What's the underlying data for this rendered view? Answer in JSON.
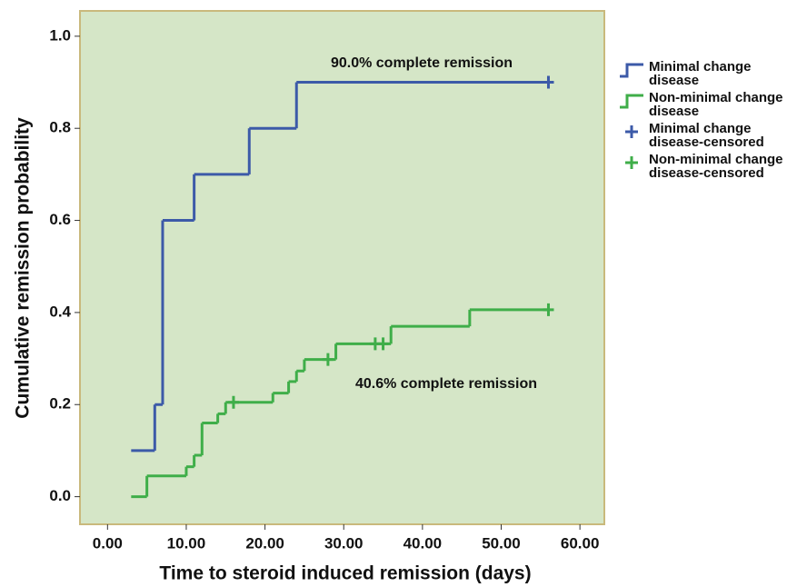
{
  "chart_data": {
    "type": "step",
    "xlabel": "Time to steroid induced remission (days)",
    "ylabel": "Cumulative remission probability",
    "xlim": [
      -3.5,
      63.1
    ],
    "ylim": [
      -0.06,
      1.055
    ],
    "xticks": [
      {
        "value": 0,
        "label": "0.00"
      },
      {
        "value": 10,
        "label": "10.00"
      },
      {
        "value": 20,
        "label": "20.00"
      },
      {
        "value": 30,
        "label": "30.00"
      },
      {
        "value": 40,
        "label": "40.00"
      },
      {
        "value": 50,
        "label": "50.00"
      },
      {
        "value": 60,
        "label": "60.00"
      }
    ],
    "yticks": [
      {
        "value": 0,
        "label": "0.0"
      },
      0.2,
      0.4,
      0.6,
      0.8,
      {
        "value": 1,
        "label": "1.0"
      }
    ],
    "annotations": [
      "90.0% complete remission",
      "40.6% complete remission"
    ],
    "series": [
      {
        "name": "Minimal change disease",
        "color": "#3c5aa8",
        "marker": "step",
        "x": [
          3,
          6,
          7,
          11,
          18,
          24,
          56
        ],
        "values": [
          0.1,
          0.2,
          0.6,
          0.7,
          0.8,
          0.9,
          0.9
        ]
      },
      {
        "name": "Non-minimal change disease",
        "color": "#3fae49",
        "marker": "step",
        "x": [
          3,
          5,
          10,
          11,
          12,
          14,
          15,
          21,
          23,
          24,
          25,
          29,
          36,
          46,
          56
        ],
        "values": [
          0,
          0.045,
          0.065,
          0.09,
          0.16,
          0.18,
          0.205,
          0.225,
          0.25,
          0.273,
          0.298,
          0.332,
          0.37,
          0.406,
          0.406
        ]
      },
      {
        "name": "Minimal change disease-censored",
        "color": "#3c5aa8",
        "marker": "plus",
        "x": [
          56
        ],
        "values": [
          0.9
        ]
      },
      {
        "name": "Non-minimal change disease-censored",
        "color": "#3fae49",
        "marker": "plus",
        "x": [
          16,
          28,
          34,
          35,
          56
        ],
        "values": [
          0.205,
          0.298,
          0.332,
          0.332,
          0.406
        ]
      }
    ]
  }
}
